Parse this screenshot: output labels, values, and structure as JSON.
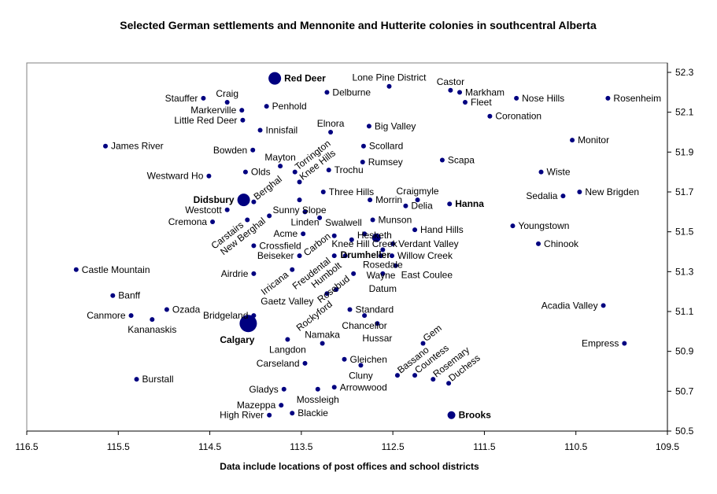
{
  "chart_data": {
    "type": "scatter",
    "title": "Selected German settlements and Mennonite and Hutterite colonies in southcentral Alberta",
    "xlabel": "Data include locations of post offices and school districts",
    "ylabel": "",
    "xlim": [
      116.5,
      109.5
    ],
    "ylim": [
      50.5,
      52.3
    ],
    "x_reversed": true,
    "y_axis_side": "right",
    "grid": false,
    "marker_color": "#000080",
    "xticks": [
      "116.5",
      "115.5",
      "114.5",
      "113.5",
      "112.5",
      "111.5",
      "110.5",
      "109.5"
    ],
    "yticks": [
      "52.3",
      "52.1",
      "51.9",
      "51.7",
      "51.5",
      "51.3",
      "51.1",
      "50.9",
      "50.7",
      "50.5"
    ],
    "points": [
      {
        "name": "Red Deer",
        "x": 113.79,
        "y": 52.27,
        "label": "right",
        "marker": "large",
        "bold": true
      },
      {
        "name": "Lone Pine District",
        "x": 112.54,
        "y": 52.23,
        "label": "above"
      },
      {
        "name": "Castor",
        "x": 111.87,
        "y": 52.21,
        "label": "above"
      },
      {
        "name": "Markham",
        "x": 111.77,
        "y": 52.2,
        "label": "right"
      },
      {
        "name": "Fleet",
        "x": 111.71,
        "y": 52.15,
        "label": "right"
      },
      {
        "name": "Nose Hills",
        "x": 111.15,
        "y": 52.17,
        "label": "right"
      },
      {
        "name": "Rosenheim",
        "x": 110.15,
        "y": 52.17,
        "label": "right"
      },
      {
        "name": "Coronation",
        "x": 111.44,
        "y": 52.08,
        "label": "right"
      },
      {
        "name": "Monitor",
        "x": 110.54,
        "y": 51.96,
        "label": "right"
      },
      {
        "name": "Stauffer",
        "x": 114.57,
        "y": 52.17,
        "label": "left"
      },
      {
        "name": "Craig",
        "x": 114.31,
        "y": 52.15,
        "label": "above"
      },
      {
        "name": "Markerville",
        "x": 114.15,
        "y": 52.11,
        "label": "left"
      },
      {
        "name": "Penhold",
        "x": 113.88,
        "y": 52.13,
        "label": "right"
      },
      {
        "name": "Delburne",
        "x": 113.22,
        "y": 52.2,
        "label": "right"
      },
      {
        "name": "Little Red Deer",
        "x": 114.14,
        "y": 52.06,
        "label": "left"
      },
      {
        "name": "Innisfail",
        "x": 113.95,
        "y": 52.01,
        "label": "right"
      },
      {
        "name": "Elnora",
        "x": 113.18,
        "y": 52.0,
        "label": "above"
      },
      {
        "name": "Big Valley",
        "x": 112.76,
        "y": 52.03,
        "label": "right"
      },
      {
        "name": "James River",
        "x": 115.64,
        "y": 51.93,
        "label": "right"
      },
      {
        "name": "Bowden",
        "x": 114.03,
        "y": 51.91,
        "label": "left"
      },
      {
        "name": "Scollard",
        "x": 112.82,
        "y": 51.93,
        "label": "right"
      },
      {
        "name": "Mayton",
        "x": 113.73,
        "y": 51.83,
        "label": "above"
      },
      {
        "name": "Torrington",
        "x": 113.57,
        "y": 51.8,
        "label": "rotated"
      },
      {
        "name": "Knee Hills",
        "x": 113.52,
        "y": 51.75,
        "label": "rotated"
      },
      {
        "name": "Trochu",
        "x": 113.2,
        "y": 51.81,
        "label": "rotated"
      },
      {
        "name": "Three Hills",
        "x": 113.26,
        "y": 51.7,
        "label": "rotated"
      },
      {
        "name": "Rumsey",
        "x": 112.83,
        "y": 51.85,
        "label": "right"
      },
      {
        "name": "Scapa",
        "x": 111.96,
        "y": 51.86,
        "label": "right"
      },
      {
        "name": "Westward Ho",
        "x": 114.51,
        "y": 51.78,
        "label": "left"
      },
      {
        "name": "Olds",
        "x": 114.11,
        "y": 51.8,
        "label": "right"
      },
      {
        "name": "Wiste",
        "x": 110.88,
        "y": 51.8,
        "label": "right"
      },
      {
        "name": "Didsbury",
        "x": 114.13,
        "y": 51.66,
        "label": "left",
        "marker": "large",
        "bold": true
      },
      {
        "name": "Berghal",
        "x": 114.02,
        "y": 51.65,
        "label": "rotated"
      },
      {
        "name": "Sedalia",
        "x": 110.64,
        "y": 51.68,
        "label": "left"
      },
      {
        "name": "New Brigden",
        "x": 110.46,
        "y": 51.7,
        "label": "right"
      },
      {
        "name": "Sunny Slope",
        "x": 113.52,
        "y": 51.66,
        "label": "right"
      },
      {
        "name": "Morrin",
        "x": 112.75,
        "y": 51.66,
        "label": "above"
      },
      {
        "name": "Craigmyle",
        "x": 112.23,
        "y": 51.66,
        "label": "above"
      },
      {
        "name": "Delia",
        "x": 112.36,
        "y": 51.63,
        "label": "right"
      },
      {
        "name": "Hanna",
        "x": 111.88,
        "y": 51.64,
        "label": "right",
        "bold": true
      },
      {
        "name": "Westcott",
        "x": 114.31,
        "y": 51.61,
        "label": "left"
      },
      {
        "name": "Linden",
        "x": 113.46,
        "y": 51.6,
        "label": "right"
      },
      {
        "name": "Cremona",
        "x": 114.47,
        "y": 51.55,
        "label": "left"
      },
      {
        "name": "Carstairs",
        "x": 114.09,
        "y": 51.56,
        "label": "rotated-end"
      },
      {
        "name": "New Berghal",
        "x": 113.85,
        "y": 51.58,
        "label": "rotated-end"
      },
      {
        "name": "Swalwell",
        "x": 113.3,
        "y": 51.57,
        "label": "right"
      },
      {
        "name": "Munson",
        "x": 112.72,
        "y": 51.56,
        "label": "right"
      },
      {
        "name": "Youngstown",
        "x": 111.19,
        "y": 51.53,
        "label": "right"
      },
      {
        "name": "Hand Hills",
        "x": 112.26,
        "y": 51.51,
        "label": "right"
      },
      {
        "name": "Acme",
        "x": 113.48,
        "y": 51.49,
        "label": "left"
      },
      {
        "name": "Knee Hill Creek",
        "x": 112.81,
        "y": 51.49,
        "label": "above"
      },
      {
        "name": "Carbon",
        "x": 113.14,
        "y": 51.48,
        "label": "rotated-end"
      },
      {
        "name": "Hesketh",
        "x": 112.95,
        "y": 51.46,
        "label": "rotated-end"
      },
      {
        "name": "Drumheller",
        "x": 112.68,
        "y": 51.47,
        "label": "right",
        "marker": "medium",
        "bold": true
      },
      {
        "name": "Verdant Valley",
        "x": 112.5,
        "y": 51.44,
        "label": "right"
      },
      {
        "name": "Chinook",
        "x": 110.91,
        "y": 51.44,
        "label": "right"
      },
      {
        "name": "Crossfield",
        "x": 114.02,
        "y": 51.43,
        "label": "right"
      },
      {
        "name": "Rosedale",
        "x": 112.61,
        "y": 51.41,
        "label": "right"
      },
      {
        "name": "Beiseker",
        "x": 113.52,
        "y": 51.38,
        "label": "left"
      },
      {
        "name": "Freudental",
        "x": 113.14,
        "y": 51.38,
        "label": "rotated-end"
      },
      {
        "name": "Humbolt",
        "x": 113.02,
        "y": 51.38,
        "label": "rotated-end"
      },
      {
        "name": "Wayne",
        "x": 112.63,
        "y": 51.38,
        "label": "rotated-end"
      },
      {
        "name": "Willow Creek",
        "x": 112.51,
        "y": 51.38,
        "label": "right"
      },
      {
        "name": "East Coulee",
        "x": 112.47,
        "y": 51.33,
        "label": "right"
      },
      {
        "name": "Castle Mountain",
        "x": 115.96,
        "y": 51.31,
        "label": "right"
      },
      {
        "name": "Irricana",
        "x": 113.6,
        "y": 51.31,
        "label": "rotated-end"
      },
      {
        "name": "Airdrie",
        "x": 114.02,
        "y": 51.29,
        "label": "left"
      },
      {
        "name": "Rosebud",
        "x": 112.93,
        "y": 51.29,
        "label": "rotated-end"
      },
      {
        "name": "Datum",
        "x": 112.61,
        "y": 51.29,
        "label": "rotated-end"
      },
      {
        "name": "Rockyford",
        "x": 113.12,
        "y": 51.21,
        "label": "rotated-end"
      },
      {
        "name": "Gaetz Valley",
        "x": 113.22,
        "y": 51.19,
        "label": "rotated-end"
      },
      {
        "name": "Banff",
        "x": 115.56,
        "y": 51.18,
        "label": "right"
      },
      {
        "name": "Ozada",
        "x": 114.97,
        "y": 51.11,
        "label": "right"
      },
      {
        "name": "Standard",
        "x": 112.97,
        "y": 51.11,
        "label": "rotated"
      },
      {
        "name": "Acadia Valley",
        "x": 110.2,
        "y": 51.13,
        "label": "left"
      },
      {
        "name": "Canmore",
        "x": 115.36,
        "y": 51.08,
        "label": "left"
      },
      {
        "name": "Bridgeland",
        "x": 114.02,
        "y": 51.08,
        "label": "rotated"
      },
      {
        "name": "Chancellor",
        "x": 112.81,
        "y": 51.08,
        "label": "rotated"
      },
      {
        "name": "Kananaskis",
        "x": 115.13,
        "y": 51.06,
        "label": "right"
      },
      {
        "name": "Calgary",
        "x": 114.08,
        "y": 51.04,
        "label": "below",
        "marker": "xlarge",
        "bold": true
      },
      {
        "name": "Hussar",
        "x": 112.67,
        "y": 51.04,
        "label": "rotated"
      },
      {
        "name": "Langdon",
        "x": 113.65,
        "y": 50.96,
        "label": "below"
      },
      {
        "name": "Namaka",
        "x": 113.27,
        "y": 50.94,
        "label": "right"
      },
      {
        "name": "Gem",
        "x": 112.17,
        "y": 50.94,
        "label": "rotated"
      },
      {
        "name": "Empress",
        "x": 109.97,
        "y": 50.94,
        "label": "left"
      },
      {
        "name": "Gleichen",
        "x": 113.03,
        "y": 50.86,
        "label": "right"
      },
      {
        "name": "Carseland",
        "x": 113.46,
        "y": 50.84,
        "label": "left"
      },
      {
        "name": "Cluny",
        "x": 112.85,
        "y": 50.83,
        "label": "right"
      },
      {
        "name": "Bassano",
        "x": 112.45,
        "y": 50.78,
        "label": "rotated"
      },
      {
        "name": "Countess",
        "x": 112.26,
        "y": 50.78,
        "label": "rotated"
      },
      {
        "name": "Rosemary",
        "x": 112.06,
        "y": 50.76,
        "label": "rotated"
      },
      {
        "name": "Burstall",
        "x": 115.3,
        "y": 50.76,
        "label": "right"
      },
      {
        "name": "Duchess",
        "x": 111.89,
        "y": 50.74,
        "label": "rotated"
      },
      {
        "name": "Arrowwood",
        "x": 113.14,
        "y": 50.72,
        "label": "right"
      },
      {
        "name": "Gladys",
        "x": 113.69,
        "y": 50.71,
        "label": "left"
      },
      {
        "name": "Mossleigh",
        "x": 113.32,
        "y": 50.71,
        "label": "below"
      },
      {
        "name": "Mazeppa",
        "x": 113.72,
        "y": 50.63,
        "label": "left"
      },
      {
        "name": "Blackie",
        "x": 113.6,
        "y": 50.59,
        "label": "right"
      },
      {
        "name": "High River",
        "x": 113.85,
        "y": 50.58,
        "label": "left"
      },
      {
        "name": "Brooks",
        "x": 111.86,
        "y": 50.58,
        "label": "right",
        "marker": "medium-large",
        "bold": true
      }
    ]
  }
}
